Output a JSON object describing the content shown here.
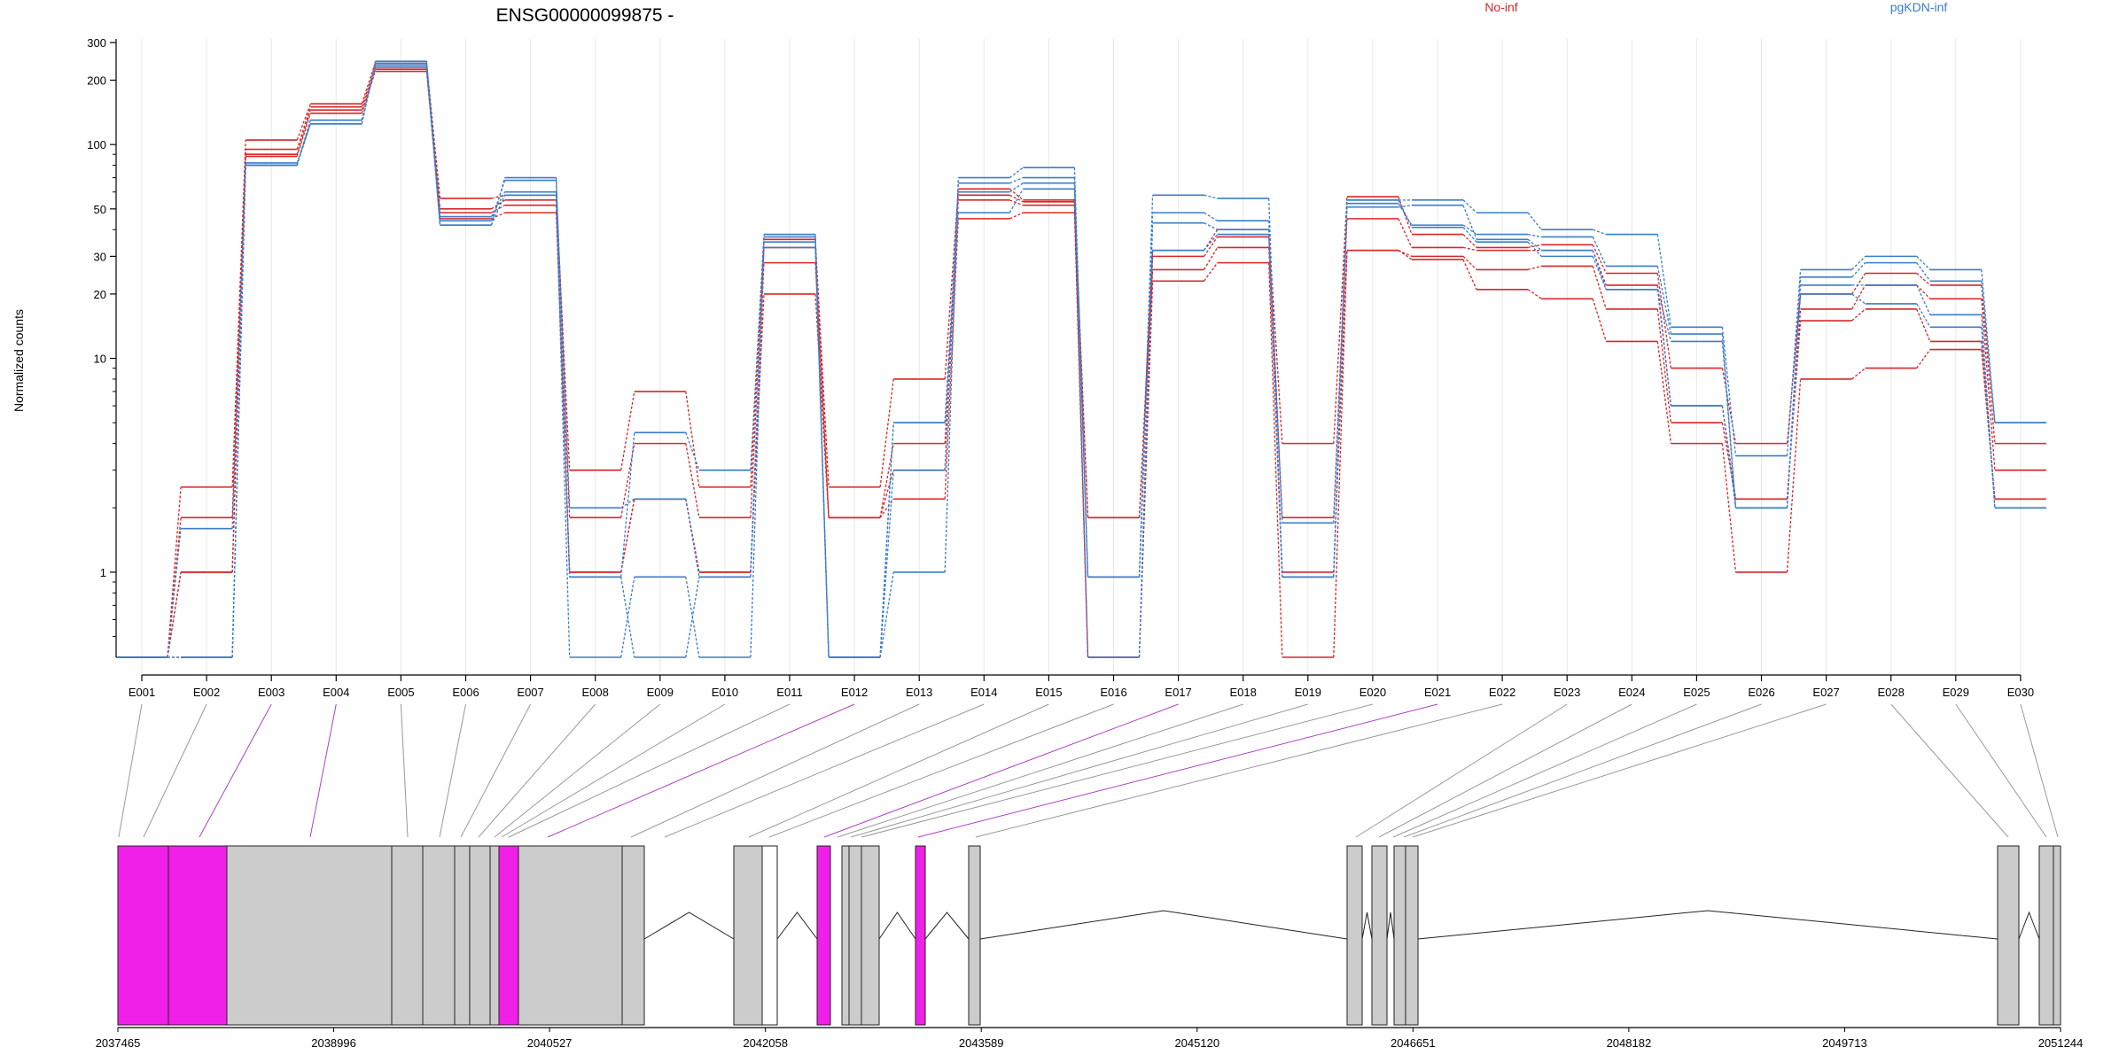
{
  "chart_data": {
    "type": "line",
    "title": "ENSG00000099875 -",
    "ylabel": "Normalized counts",
    "xlabel": "",
    "yscale": "log",
    "ylim": [
      0.4,
      300
    ],
    "yticks": [
      1,
      10,
      20,
      30,
      50,
      100,
      200,
      300
    ],
    "grid": "vertical",
    "legend_position": "top",
    "categories": [
      "E001",
      "E002",
      "E003",
      "E004",
      "E005",
      "E006",
      "E007",
      "E008",
      "E009",
      "E010",
      "E011",
      "E012",
      "E013",
      "E014",
      "E015",
      "E016",
      "E017",
      "E018",
      "E019",
      "E020",
      "E021",
      "E022",
      "E023",
      "E024",
      "E025",
      "E026",
      "E027",
      "E028",
      "E029",
      "E030"
    ],
    "groups": [
      {
        "name": "No-inf",
        "color": "#d62728"
      },
      {
        "name": "pgKDN-inf",
        "color": "#3a7dc9"
      }
    ],
    "series": [
      {
        "group": 0,
        "values": [
          0.4,
          2.5,
          105,
          155,
          240,
          56,
          58,
          3,
          7,
          2.5,
          36,
          2.5,
          8,
          62,
          55,
          1.8,
          32,
          40,
          4,
          57,
          38,
          33,
          34,
          25,
          9,
          4,
          20,
          25,
          22,
          4
        ]
      },
      {
        "group": 0,
        "values": [
          0.4,
          1.8,
          95,
          150,
          230,
          50,
          55,
          1.8,
          4,
          1.8,
          33,
          1.8,
          4,
          58,
          54,
          0.4,
          30,
          37,
          1.8,
          45,
          33,
          32,
          32,
          22,
          6,
          2.2,
          17,
          22,
          19,
          3
        ]
      },
      {
        "group": 0,
        "values": [
          0.4,
          1.0,
          90,
          145,
          225,
          48,
          52,
          1.0,
          2.2,
          1.0,
          28,
          1.8,
          3,
          55,
          52,
          1.8,
          26,
          33,
          1.0,
          32,
          30,
          26,
          27,
          17,
          5,
          2.2,
          15,
          17,
          12,
          2.2
        ]
      },
      {
        "group": 0,
        "values": [
          0.4,
          1.0,
          88,
          140,
          220,
          45,
          48,
          1.0,
          2.2,
          1.0,
          20,
          1.8,
          2.2,
          45,
          48,
          0.4,
          23,
          28,
          0.4,
          32,
          29,
          21,
          19,
          12,
          4,
          1.0,
          8,
          9,
          11,
          2.2
        ]
      },
      {
        "group": 1,
        "values": [
          0.4,
          1.6,
          82,
          125,
          245,
          42,
          70,
          0.95,
          4.5,
          3,
          38,
          0.4,
          1.0,
          70,
          78,
          0.95,
          58,
          56,
          0.95,
          55,
          55,
          48,
          40,
          38,
          14,
          3.5,
          26,
          30,
          26,
          5
        ]
      },
      {
        "group": 1,
        "values": [
          0.4,
          0.4,
          80,
          125,
          240,
          44,
          68,
          2,
          2.2,
          0.95,
          37,
          0.4,
          3,
          66,
          70,
          0.95,
          48,
          44,
          1.7,
          53,
          42,
          38,
          37,
          27,
          13,
          2,
          24,
          28,
          23,
          5
        ]
      },
      {
        "group": 1,
        "values": [
          0.4,
          0.4,
          80,
          130,
          235,
          46,
          60,
          0.4,
          0.95,
          0.4,
          35,
          0.4,
          5,
          60,
          66,
          0.4,
          43,
          40,
          0.95,
          55,
          41,
          35,
          30,
          21,
          6,
          2,
          22,
          22,
          16,
          2
        ]
      },
      {
        "group": 1,
        "values": [
          0.4,
          0.4,
          80,
          130,
          230,
          42,
          58,
          0.95,
          0.4,
          0.95,
          33,
          0.4,
          5,
          48,
          62,
          0.95,
          32,
          38,
          0.95,
          51,
          52,
          36,
          32,
          21,
          12,
          2,
          20,
          18,
          14,
          2
        ]
      }
    ],
    "genomic_axis": {
      "ticks": [
        "2037465",
        "2038996",
        "2040527",
        "2042058",
        "2043589",
        "2045120",
        "2046651",
        "2048182",
        "2049713",
        "2051244"
      ],
      "highlight_color": "#f020e8",
      "exon_color": "#cccccc"
    }
  }
}
